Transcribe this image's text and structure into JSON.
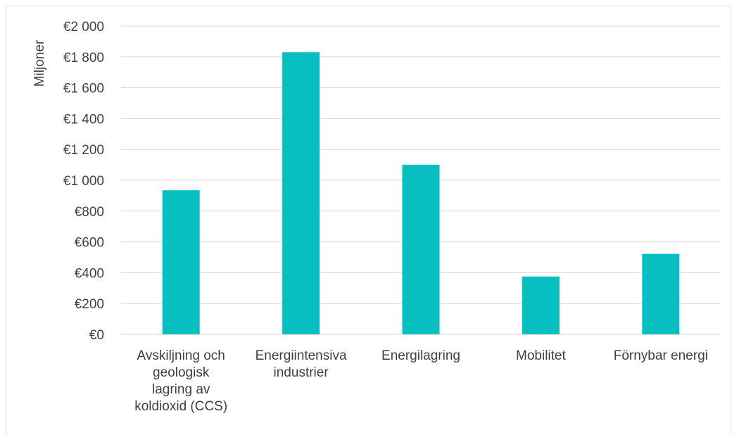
{
  "chart_data": {
    "type": "bar",
    "ylabel": "Miljoner",
    "ylim": [
      0,
      2000
    ],
    "yticks": [
      "€0",
      "€200",
      "€400",
      "€600",
      "€800",
      "€1 000",
      "€1 200",
      "€1 400",
      "€1 600",
      "€1 800",
      "€2 000"
    ],
    "categories": [
      [
        "Avskiljning och",
        "geologisk",
        "lagring av",
        "koldioxid (CCS)"
      ],
      [
        "Energiintensiva",
        "industrier"
      ],
      [
        "Energilagring"
      ],
      [
        "Mobilitet"
      ],
      [
        "Förnybar energi"
      ]
    ],
    "values": [
      935,
      1830,
      1100,
      375,
      522
    ],
    "grid": true,
    "bar_color": "#07BFC0"
  }
}
